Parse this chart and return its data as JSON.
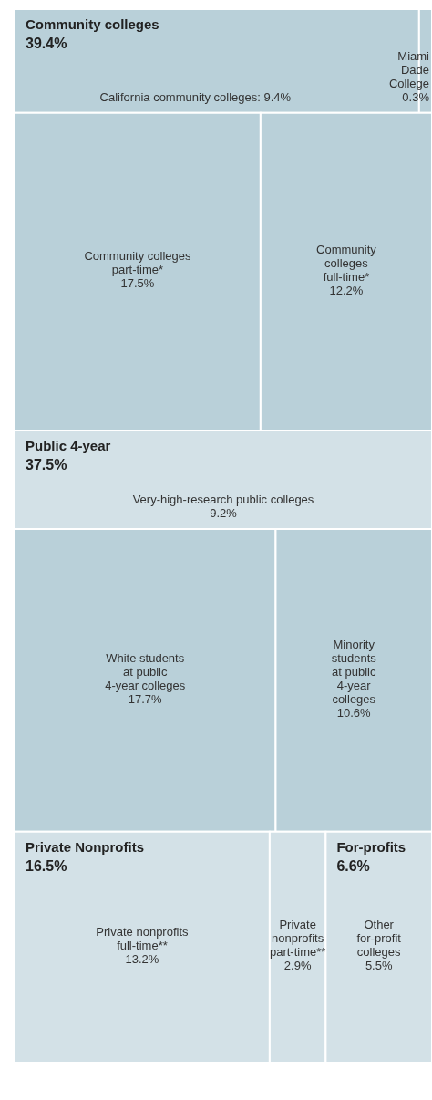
{
  "chart_data": {
    "type": "other",
    "categories": [
      "California community colleges",
      "Miami\nDade\nCollege",
      "Community colleges\npart-time*",
      "Community\ncolleges\nfull-time*",
      "Very-high-research public colleges",
      "White students\nat public\n4-year colleges",
      "Minority\nstudents\nat public\n4-year\ncolleges",
      "Private nonprofits\nfull-time**",
      "Private\nnonprofits\npart-time**",
      "Other\nfor-profit\ncolleges"
    ],
    "series": [
      {
        "name": "Community colleges",
        "values": [
          9.4,
          0.3,
          17.5,
          12.2,
          null,
          null,
          null,
          null,
          null,
          null
        ],
        "value_labels": [
          ": 9.4%",
          "0.3%",
          "17.5%",
          "12.2%",
          null,
          null,
          null,
          null,
          null,
          null
        ],
        "colors": [
          "#b9d0d9",
          "#b9d0d9",
          "#b9d0d9",
          "#b9d0d9",
          null,
          null,
          null,
          null,
          null,
          null
        ]
      },
      {
        "name": "Public 4-year",
        "values": [
          null,
          null,
          null,
          null,
          9.2,
          17.7,
          10.6,
          null,
          null,
          null
        ],
        "value_labels": [
          null,
          null,
          null,
          null,
          "9.2%",
          "17.7%",
          "10.6%",
          null,
          null,
          null
        ],
        "colors": [
          null,
          null,
          null,
          null,
          "#d3e1e7",
          "#b9d0d9",
          "#b9d0d9",
          null,
          null,
          null
        ]
      },
      {
        "name": "Private Nonprofits",
        "values": [
          null,
          null,
          null,
          null,
          null,
          null,
          null,
          13.2,
          2.9,
          null
        ],
        "value_labels": [
          null,
          null,
          null,
          null,
          null,
          null,
          null,
          "13.2%",
          "2.9%",
          null
        ],
        "colors": [
          null,
          null,
          null,
          null,
          null,
          null,
          null,
          "#d3e1e7",
          "#d3e1e7",
          null
        ]
      },
      {
        "name": "For-profits",
        "values": [
          null,
          null,
          null,
          null,
          null,
          null,
          null,
          null,
          null,
          5.5
        ],
        "value_labels": [
          null,
          null,
          null,
          null,
          null,
          null,
          null,
          null,
          null,
          "5.5%"
        ],
        "colors": [
          null,
          null,
          null,
          null,
          null,
          null,
          null,
          null,
          null,
          "#d3e1e7"
        ]
      }
    ],
    "annotations": [
      "39.4%",
      "37.5%",
      "16.5%",
      "6.6%"
    ]
  }
}
